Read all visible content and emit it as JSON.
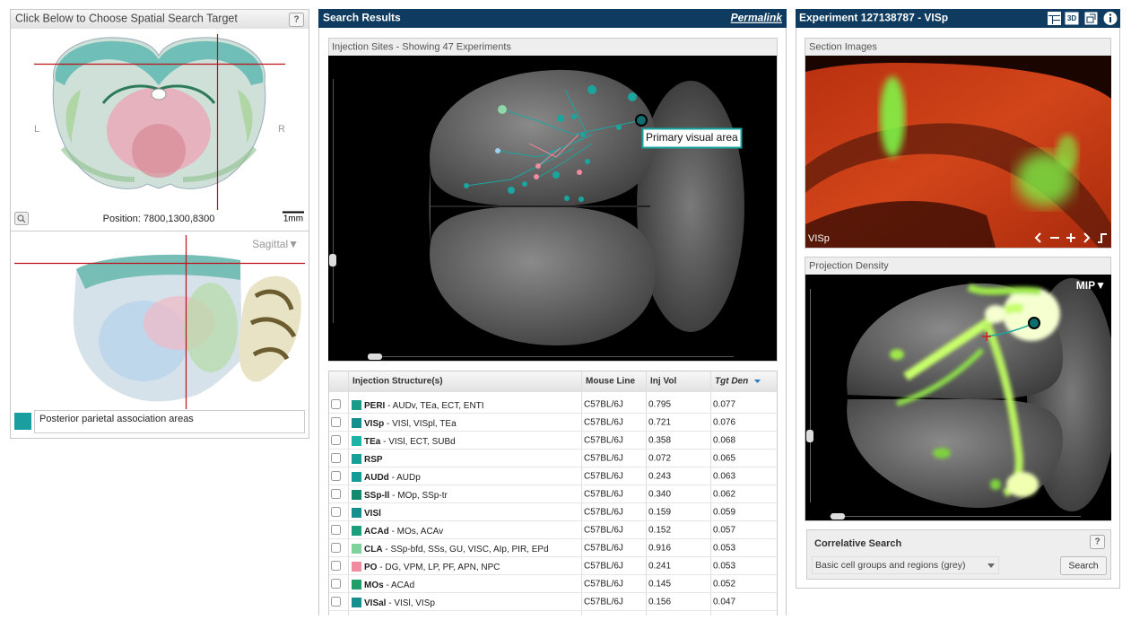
{
  "left_panel": {
    "title": "Click Below to Choose Spatial Search Target",
    "help": "?",
    "coronal": {
      "left_label": "L",
      "right_label": "R",
      "position": "Position: 7800,1300,8300",
      "scale": "1mm"
    },
    "sagittal": {
      "view": "Sagittal▼",
      "structure": "Posterior parietal association areas",
      "structure_color": "#1a9ea0"
    }
  },
  "search_results": {
    "title": "Search Results",
    "permalink": "Permalink",
    "injection_sites": {
      "title": "Injection Sites - Showing 47 Experiments",
      "tooltip": "Primary visual area"
    },
    "table": {
      "columns": [
        "Injection Structure(s)",
        "Mouse Line",
        "Inj Vol",
        "Tgt Den"
      ],
      "rows": [
        {
          "structure": "PERI",
          "detail": "- AUDv, TEa, ECT, ENTI",
          "color": "#1a9a8a",
          "mouse_line": "C57BL/6J",
          "inj_vol": "0.795",
          "tgt_den": "0.077"
        },
        {
          "structure": "VISp",
          "detail": "- VISl, VISpl, TEa",
          "color": "#148f8f",
          "mouse_line": "C57BL/6J",
          "inj_vol": "0.721",
          "tgt_den": "0.076"
        },
        {
          "structure": "TEa",
          "detail": "- VISl, ECT, SUBd",
          "color": "#1ab3a6",
          "mouse_line": "C57BL/6J",
          "inj_vol": "0.358",
          "tgt_den": "0.068"
        },
        {
          "structure": "RSP",
          "detail": "",
          "color": "#17a09a",
          "mouse_line": "C57BL/6J",
          "inj_vol": "0.072",
          "tgt_den": "0.065"
        },
        {
          "structure": "AUDd",
          "detail": "- AUDp",
          "color": "#159c99",
          "mouse_line": "C57BL/6J",
          "inj_vol": "0.243",
          "tgt_den": "0.063"
        },
        {
          "structure": "SSp-ll",
          "detail": "- MOp, SSp-tr",
          "color": "#138a70",
          "mouse_line": "C57BL/6J",
          "inj_vol": "0.340",
          "tgt_den": "0.062"
        },
        {
          "structure": "VISl",
          "detail": "",
          "color": "#178f8f",
          "mouse_line": "C57BL/6J",
          "inj_vol": "0.159",
          "tgt_den": "0.059"
        },
        {
          "structure": "ACAd",
          "detail": "- MOs, ACAv",
          "color": "#1a9f7a",
          "mouse_line": "C57BL/6J",
          "inj_vol": "0.152",
          "tgt_den": "0.057"
        },
        {
          "structure": "CLA",
          "detail": "- SSp-bfd, SSs, GU, VISC, AIp, PIR, EPd",
          "color": "#7fd39a",
          "mouse_line": "C57BL/6J",
          "inj_vol": "0.916",
          "tgt_den": "0.053"
        },
        {
          "structure": "PO",
          "detail": "- DG, VPM, LP, PF, APN, NPC",
          "color": "#f08ca0",
          "mouse_line": "C57BL/6J",
          "inj_vol": "0.241",
          "tgt_den": "0.053"
        },
        {
          "structure": "MOs",
          "detail": "- ACAd",
          "color": "#1f9e6a",
          "mouse_line": "C57BL/6J",
          "inj_vol": "0.145",
          "tgt_den": "0.052"
        },
        {
          "structure": "VISal",
          "detail": "- VISl, VISp",
          "color": "#158f90",
          "mouse_line": "C57BL/6J",
          "inj_vol": "0.156",
          "tgt_den": "0.047"
        }
      ]
    }
  },
  "experiment": {
    "title": "Experiment 127138787 - VISp",
    "view_3d": "3D",
    "section_images": {
      "title": "Section Images",
      "label": "VISp"
    },
    "projection_density": {
      "title": "Projection Density",
      "view": "MIP▼"
    },
    "correlative_search": {
      "title": "Correlative Search",
      "help": "?",
      "select": "Basic cell groups and regions (grey)",
      "button": "Search"
    }
  }
}
